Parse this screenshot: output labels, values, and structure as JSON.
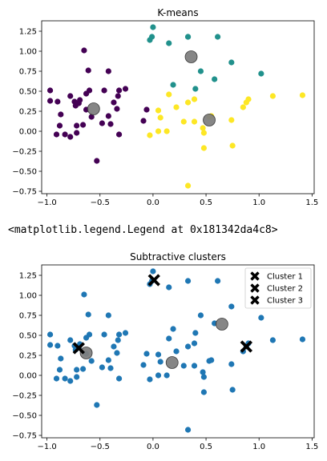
{
  "output_text": "<matplotlib.legend.Legend at 0x181342da4c8>",
  "colors": {
    "cluster0": "#440154",
    "cluster1": "#21918c",
    "cluster2": "#fde725",
    "single": "#1f77b4",
    "center": "#7f7f7f",
    "marker_x": "#000000"
  },
  "chart_data": [
    {
      "type": "scatter",
      "title": "K-means",
      "xlim": [
        -1.05,
        1.52
      ],
      "ylim": [
        -0.78,
        1.38
      ],
      "xticks": [
        -1.0,
        -0.5,
        0.0,
        0.5,
        1.0,
        1.5
      ],
      "xtick_labels": [
        "−1.0",
        "−0.5",
        "0.0",
        "0.5",
        "1.0",
        "1.5"
      ],
      "yticks": [
        -0.75,
        -0.5,
        -0.25,
        0.0,
        0.25,
        0.5,
        0.75,
        1.0,
        1.25
      ],
      "ytick_labels": [
        "−0.75",
        "−0.50",
        "−0.25",
        "0.00",
        "0.25",
        "0.50",
        "0.75",
        "1.00",
        "1.25"
      ],
      "series": [
        {
          "color_key": "cluster0",
          "points": [
            [
              -0.97,
              0.51
            ],
            [
              -0.97,
              0.38
            ],
            [
              -0.9,
              0.37
            ],
            [
              -0.87,
              0.21
            ],
            [
              -0.88,
              0.07
            ],
            [
              -0.91,
              -0.04
            ],
            [
              -0.83,
              -0.04
            ],
            [
              -0.78,
              -0.07
            ],
            [
              -0.78,
              0.44
            ],
            [
              -0.73,
              0.32
            ],
            [
              -0.7,
              0.35
            ],
            [
              -0.69,
              0.39
            ],
            [
              -0.63,
              0.27
            ],
            [
              -0.63,
              0.47
            ],
            [
              -0.6,
              0.51
            ],
            [
              -0.58,
              0.18
            ],
            [
              -0.65,
              1.01
            ],
            [
              -0.61,
              0.76
            ],
            [
              -0.53,
              -0.37
            ],
            [
              -0.42,
              0.75
            ],
            [
              -0.4,
              0.09
            ],
            [
              -0.37,
              0.36
            ],
            [
              -0.34,
              0.28
            ],
            [
              -0.33,
              0.44
            ],
            [
              -0.32,
              -0.04
            ],
            [
              -0.32,
              0.51
            ],
            [
              -0.26,
              0.53
            ],
            [
              -0.66,
              0.08
            ],
            [
              -0.72,
              0.07
            ],
            [
              -0.74,
              0.37
            ],
            [
              -0.46,
              0.51
            ],
            [
              -0.72,
              -0.02
            ],
            [
              -0.42,
              0.19
            ],
            [
              -0.48,
              0.1
            ],
            [
              -0.09,
              0.13
            ],
            [
              -0.06,
              0.27
            ]
          ]
        },
        {
          "color_key": "cluster1",
          "points": [
            [
              0.0,
              1.3
            ],
            [
              -0.01,
              1.18
            ],
            [
              -0.03,
              1.14
            ],
            [
              0.15,
              1.1
            ],
            [
              0.33,
              1.18
            ],
            [
              0.61,
              1.18
            ],
            [
              0.19,
              0.58
            ],
            [
              0.4,
              0.53
            ],
            [
              0.45,
              0.75
            ],
            [
              0.58,
              0.65
            ],
            [
              0.74,
              0.86
            ],
            [
              1.02,
              0.72
            ],
            [
              0.33,
              1.18
            ]
          ]
        },
        {
          "color_key": "cluster2",
          "points": [
            [
              -0.03,
              -0.05
            ],
            [
              0.05,
              0.26
            ],
            [
              0.05,
              0.0
            ],
            [
              0.13,
              0.0
            ],
            [
              0.15,
              0.46
            ],
            [
              0.29,
              0.12
            ],
            [
              0.33,
              0.36
            ],
            [
              0.39,
              0.4
            ],
            [
              0.47,
              0.04
            ],
            [
              0.48,
              -0.02
            ],
            [
              0.48,
              -0.21
            ],
            [
              0.53,
              0.18
            ],
            [
              0.55,
              0.19
            ],
            [
              0.74,
              0.14
            ],
            [
              0.75,
              -0.18
            ],
            [
              0.85,
              0.3
            ],
            [
              0.88,
              0.36
            ],
            [
              0.9,
              0.4
            ],
            [
              1.13,
              0.44
            ],
            [
              1.41,
              0.45
            ],
            [
              0.33,
              -0.68
            ],
            [
              0.39,
              0.12
            ],
            [
              0.22,
              0.3
            ],
            [
              0.07,
              0.17
            ]
          ]
        },
        {
          "color_key": "center",
          "size": "large",
          "points": [
            [
              -0.56,
              0.28
            ],
            [
              0.36,
              0.93
            ],
            [
              0.53,
              0.14
            ]
          ]
        }
      ]
    },
    {
      "type": "scatter",
      "title": "Subtractive clusters",
      "xlim": [
        -1.05,
        1.52
      ],
      "ylim": [
        -0.78,
        1.38
      ],
      "xticks": [
        -1.0,
        -0.5,
        0.0,
        0.5,
        1.0,
        1.5
      ],
      "xtick_labels": [
        "−1.0",
        "−0.5",
        "0.0",
        "0.5",
        "1.0",
        "1.5"
      ],
      "yticks": [
        -0.75,
        -0.5,
        -0.25,
        0.0,
        0.25,
        0.5,
        0.75,
        1.0,
        1.25
      ],
      "ytick_labels": [
        "−0.75",
        "−0.50",
        "−0.25",
        "0.00",
        "0.25",
        "0.50",
        "0.75",
        "1.00",
        "1.25"
      ],
      "legend": {
        "position": "top-right",
        "entries": [
          "Cluster 1",
          "Cluster 2",
          "Cluster 3"
        ]
      },
      "series": [
        {
          "color_key": "single",
          "points": [
            [
              -0.97,
              0.51
            ],
            [
              -0.97,
              0.38
            ],
            [
              -0.9,
              0.37
            ],
            [
              -0.87,
              0.21
            ],
            [
              -0.88,
              0.07
            ],
            [
              -0.91,
              -0.04
            ],
            [
              -0.83,
              -0.04
            ],
            [
              -0.78,
              -0.07
            ],
            [
              -0.78,
              0.44
            ],
            [
              -0.73,
              0.32
            ],
            [
              -0.7,
              0.35
            ],
            [
              -0.69,
              0.39
            ],
            [
              -0.63,
              0.27
            ],
            [
              -0.63,
              0.47
            ],
            [
              -0.6,
              0.51
            ],
            [
              -0.58,
              0.18
            ],
            [
              -0.65,
              1.01
            ],
            [
              -0.61,
              0.76
            ],
            [
              -0.53,
              -0.37
            ],
            [
              -0.42,
              0.75
            ],
            [
              -0.4,
              0.09
            ],
            [
              -0.37,
              0.36
            ],
            [
              -0.34,
              0.28
            ],
            [
              -0.33,
              0.44
            ],
            [
              -0.32,
              -0.04
            ],
            [
              -0.32,
              0.51
            ],
            [
              -0.26,
              0.53
            ],
            [
              -0.66,
              0.08
            ],
            [
              -0.72,
              0.07
            ],
            [
              -0.74,
              0.37
            ],
            [
              -0.46,
              0.51
            ],
            [
              -0.72,
              -0.02
            ],
            [
              -0.42,
              0.19
            ],
            [
              -0.48,
              0.1
            ],
            [
              -0.09,
              0.13
            ],
            [
              -0.06,
              0.27
            ],
            [
              0.0,
              1.3
            ],
            [
              -0.01,
              1.18
            ],
            [
              -0.03,
              1.14
            ],
            [
              0.15,
              1.1
            ],
            [
              0.33,
              1.18
            ],
            [
              0.61,
              1.18
            ],
            [
              0.19,
              0.58
            ],
            [
              0.4,
              0.53
            ],
            [
              0.45,
              0.75
            ],
            [
              0.58,
              0.65
            ],
            [
              0.74,
              0.86
            ],
            [
              1.02,
              0.72
            ],
            [
              -0.03,
              -0.05
            ],
            [
              0.05,
              0.26
            ],
            [
              0.05,
              0.0
            ],
            [
              0.13,
              0.0
            ],
            [
              0.15,
              0.46
            ],
            [
              0.29,
              0.12
            ],
            [
              0.33,
              0.36
            ],
            [
              0.39,
              0.4
            ],
            [
              0.47,
              0.04
            ],
            [
              0.48,
              -0.02
            ],
            [
              0.48,
              -0.21
            ],
            [
              0.53,
              0.18
            ],
            [
              0.55,
              0.19
            ],
            [
              0.74,
              0.14
            ],
            [
              0.75,
              -0.18
            ],
            [
              0.85,
              0.3
            ],
            [
              0.88,
              0.36
            ],
            [
              0.9,
              0.4
            ],
            [
              1.13,
              0.44
            ],
            [
              1.41,
              0.45
            ],
            [
              0.33,
              -0.68
            ],
            [
              0.39,
              0.12
            ],
            [
              0.22,
              0.3
            ],
            [
              0.07,
              0.17
            ]
          ]
        },
        {
          "color_key": "center",
          "size": "large",
          "points": [
            [
              -0.63,
              0.28
            ],
            [
              0.65,
              0.64
            ],
            [
              0.18,
              0.16
            ]
          ]
        },
        {
          "color_key": "marker_x",
          "marker": "X",
          "name": "Cluster 1",
          "points": [
            [
              -0.7,
              0.34
            ]
          ]
        },
        {
          "color_key": "marker_x",
          "marker": "X",
          "name": "Cluster 2",
          "points": [
            [
              0.01,
              1.19
            ]
          ]
        },
        {
          "color_key": "marker_x",
          "marker": "X",
          "name": "Cluster 3",
          "points": [
            [
              0.88,
              0.36
            ]
          ]
        }
      ]
    }
  ]
}
